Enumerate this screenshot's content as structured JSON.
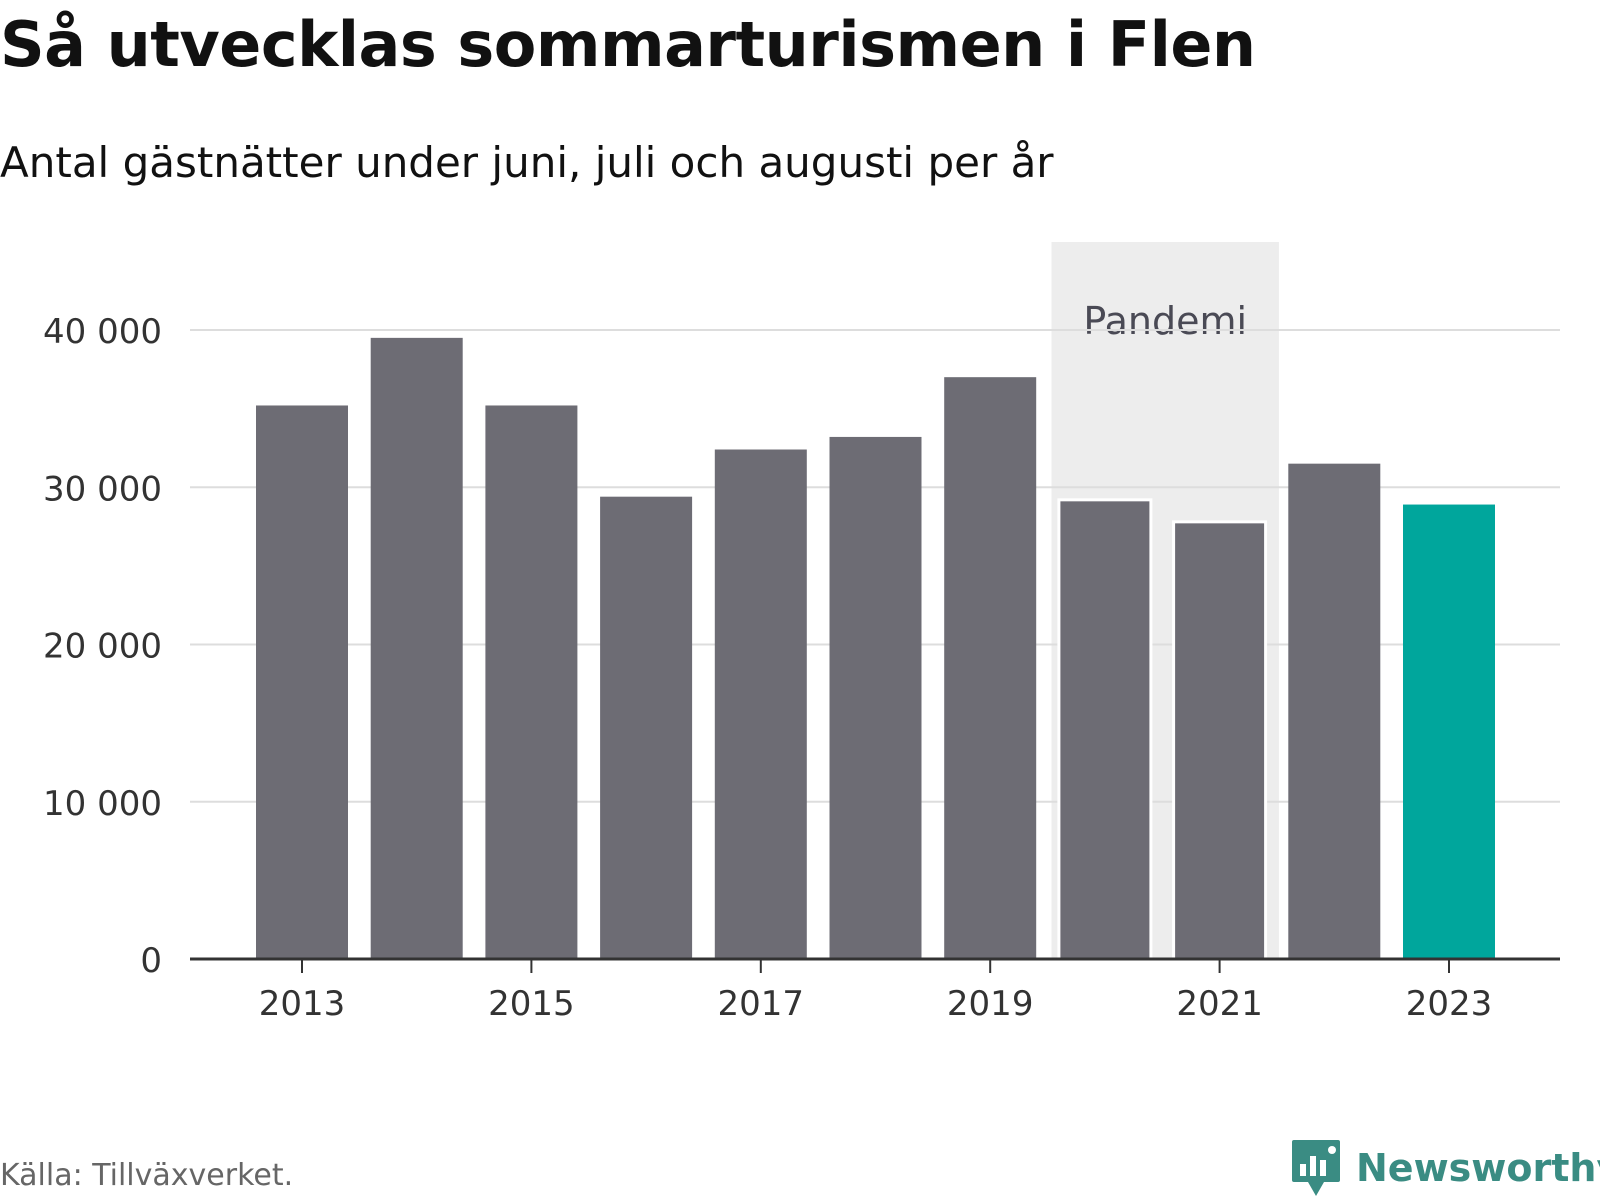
{
  "header": {
    "title": "Så utvecklas sommarturismen i Flen",
    "subtitle": "Antal gästnätter under juni, juli och augusti per år"
  },
  "footer": {
    "source": "Källa: Tillväxverket.",
    "brand": "Newsworthy"
  },
  "colors": {
    "bar": "#6d6c74",
    "highlight": "#00a69c",
    "pandemic_band": "#ededed",
    "grid": "#dddddd",
    "axis": "#333333",
    "brand": "#3a8c83"
  },
  "chart_data": {
    "type": "bar",
    "categories": [
      "2013",
      "2014",
      "2015",
      "2016",
      "2017",
      "2018",
      "2019",
      "2020",
      "2021",
      "2022",
      "2023"
    ],
    "values": [
      35200,
      39500,
      35200,
      29400,
      32400,
      33200,
      37000,
      29200,
      27800,
      31500,
      28900
    ],
    "highlight_category": "2023",
    "annotation": {
      "label": "Pandemi",
      "from": "2020",
      "to": "2021"
    },
    "title": "Så utvecklas sommarturismen i Flen",
    "subtitle": "Antal gästnätter under juni, juli och augusti per år",
    "x_tick_labels": [
      "2013",
      "2015",
      "2017",
      "2019",
      "2021",
      "2023"
    ],
    "y_ticks": [
      0,
      10000,
      20000,
      30000,
      40000
    ],
    "y_tick_labels": [
      "0",
      "10 000",
      "20 000",
      "30 000",
      "40 000"
    ],
    "ylim": [
      0,
      40000
    ],
    "grid": true,
    "legend": "none"
  }
}
